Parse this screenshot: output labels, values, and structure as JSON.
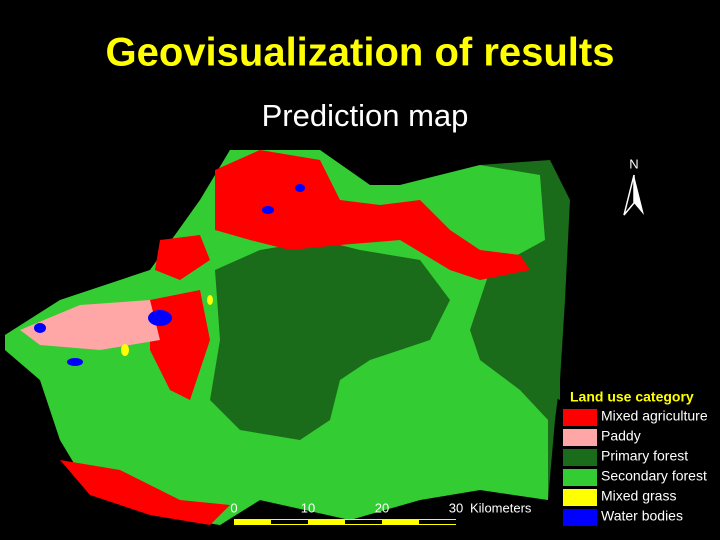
{
  "header": {
    "title": "Geovisualization of results",
    "subtitle": "Prediction map"
  },
  "north_arrow": {
    "label": "N"
  },
  "legend": {
    "title": "Land use category",
    "items": [
      {
        "label": "Mixed agriculture",
        "color": "#ff0000"
      },
      {
        "label": "Paddy",
        "color": "#ffa6a6"
      },
      {
        "label": "Primary forest",
        "color": "#1a6b1a"
      },
      {
        "label": "Secondary forest",
        "color": "#33cc33"
      },
      {
        "label": "Mixed grass",
        "color": "#ffff00"
      },
      {
        "label": "Water bodies",
        "color": "#0000ff"
      }
    ]
  },
  "scale_bar": {
    "ticks": [
      0,
      10,
      20,
      30
    ],
    "unit": "Kilometers"
  }
}
